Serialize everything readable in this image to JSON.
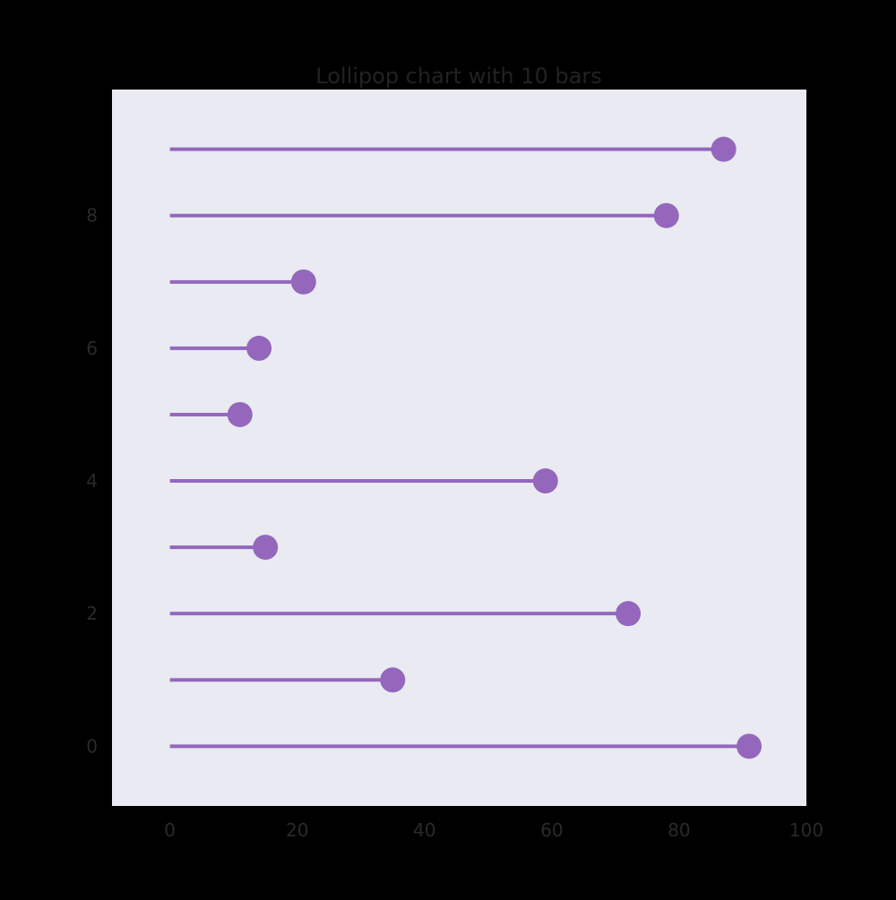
{
  "chart_data": {
    "type": "lollipop",
    "orientation": "horizontal",
    "title": "Lollipop chart with 10 bars",
    "xlabel": "",
    "ylabel": "",
    "categories": [
      0,
      1,
      2,
      3,
      4,
      5,
      6,
      7,
      8,
      9
    ],
    "values": [
      91,
      35,
      72,
      15,
      59,
      11,
      14,
      21,
      78,
      87
    ],
    "xlim": [
      -9.1,
      100
    ],
    "ylim": [
      -0.9,
      9.9
    ],
    "xticks": [
      0,
      20,
      40,
      60,
      80,
      100
    ],
    "yticks": [
      0,
      2,
      4,
      6,
      8
    ],
    "grid": false,
    "legend": "none",
    "colors": {
      "page_background": "#000000",
      "plot_background": "#eaeaf2",
      "series": "#9467bd",
      "text": "#222222"
    }
  }
}
